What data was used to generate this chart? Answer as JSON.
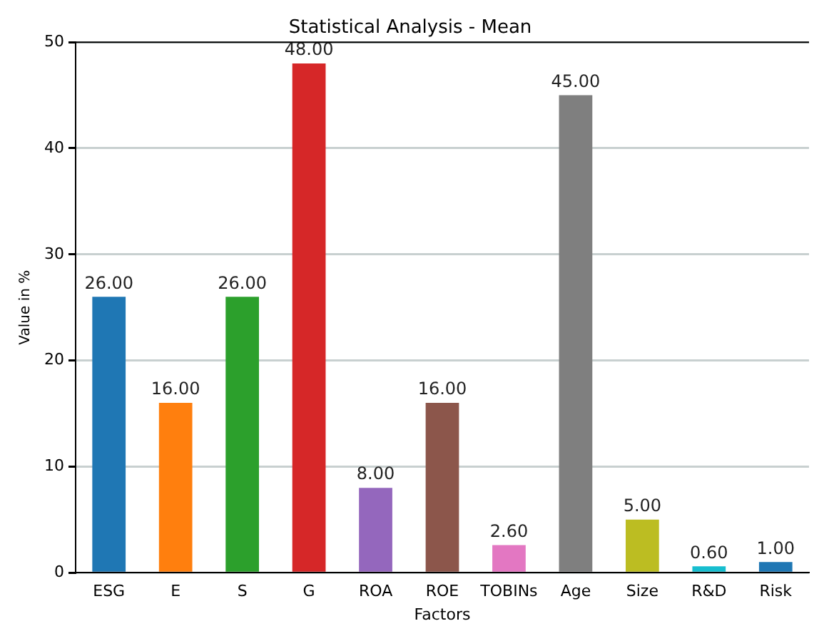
{
  "chart_data": {
    "type": "bar",
    "title": "Statistical Analysis - Mean",
    "xlabel": "Factors",
    "ylabel": "Value in %",
    "categories": [
      "ESG",
      "E",
      "S",
      "G",
      "ROA",
      "ROE",
      "TOBINs",
      "Age",
      "Size",
      "R&D",
      "Risk"
    ],
    "values": [
      26,
      16,
      26,
      48,
      8,
      16,
      2.6,
      45,
      5,
      0.6,
      1
    ],
    "colors": [
      "#1f77b4",
      "#ff7f0e",
      "#2ca02c",
      "#d62728",
      "#9467bd",
      "#8c564b",
      "#e377c2",
      "#7f7f7f",
      "#bcbd22",
      "#17becf",
      "#1f77b4"
    ],
    "value_labels": [
      "26.00",
      "16.00",
      "26.00",
      "48.00",
      "8.00",
      "16.00",
      "2.60",
      "45.00",
      "5.00",
      "0.60",
      "1.00"
    ],
    "ylim": [
      0,
      50
    ],
    "yticks": [
      0,
      10,
      20,
      30,
      40,
      50
    ],
    "grid": "y",
    "legend": false
  }
}
